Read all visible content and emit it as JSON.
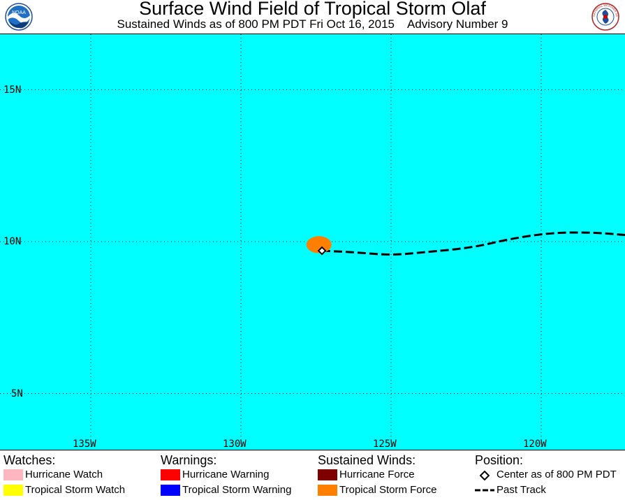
{
  "header": {
    "title": "Surface Wind Field of Tropical Storm Olaf",
    "subtitle": "Sustained Winds as of 800 PM PDT Fri Oct 16, 2015    Advisory Number 9",
    "logo_left": "NOAA",
    "logo_right": "NATIONAL WEATHER SERVICE"
  },
  "map": {
    "background_color": "#00ffff",
    "lat_labels": [
      "15N",
      "10N",
      "5N"
    ],
    "lon_labels": [
      "135W",
      "130W",
      "125W",
      "120W"
    ],
    "lat_values": [
      15,
      10,
      5
    ],
    "lon_values": [
      -135,
      -130,
      -125,
      -120
    ],
    "storm_center": {
      "lat": 9.7,
      "lon": -127.3
    },
    "wind_field": {
      "type": "Tropical Storm Force",
      "color": "#ff8000",
      "center_lat": 9.9,
      "center_lon": -127.4,
      "radius_lat": 0.28,
      "radius_lon": 0.42
    },
    "past_track": [
      {
        "lat": 9.7,
        "lon": -127.3
      },
      {
        "lat": 9.65,
        "lon": -126.2
      },
      {
        "lat": 9.55,
        "lon": -125.0
      },
      {
        "lat": 9.65,
        "lon": -123.9
      },
      {
        "lat": 9.8,
        "lon": -122.3
      },
      {
        "lat": 10.1,
        "lon": -121.0
      },
      {
        "lat": 10.3,
        "lon": -119.6
      },
      {
        "lat": 10.3,
        "lon": -118.2
      },
      {
        "lat": 10.2,
        "lon": -117.0
      }
    ]
  },
  "legend": {
    "watches": {
      "heading": "Watches:",
      "items": [
        {
          "label": "Hurricane Watch",
          "color": "#ffb6c1"
        },
        {
          "label": "Tropical Storm Watch",
          "color": "#ffff00"
        }
      ]
    },
    "warnings": {
      "heading": "Warnings:",
      "items": [
        {
          "label": "Hurricane Warning",
          "color": "#ff0000"
        },
        {
          "label": "Tropical Storm Warning",
          "color": "#0000ff"
        }
      ]
    },
    "winds": {
      "heading": "Sustained Winds:",
      "items": [
        {
          "label": "Hurricane Force",
          "color": "#800000"
        },
        {
          "label": "Tropical Storm Force",
          "color": "#ff8000"
        }
      ]
    },
    "position": {
      "heading": "Position:",
      "items": [
        {
          "label": "Center as of 800 PM PDT",
          "icon": "diamond-icon"
        },
        {
          "label": "Past Track",
          "icon": "dashed-line-icon"
        }
      ]
    }
  }
}
